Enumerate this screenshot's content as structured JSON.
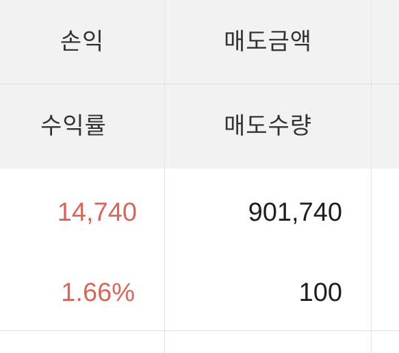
{
  "table": {
    "headers": {
      "col1_top": "손익",
      "col1_bottom": "수익률",
      "col2_top": "매도금액",
      "col2_bottom": "매도수량"
    },
    "row": {
      "profit": "14,740",
      "return_rate": "1.66%",
      "sell_amount": "901,740",
      "sell_quantity": "100"
    },
    "colors": {
      "positive": "#d9655a",
      "neutral": "#1e1e1e",
      "header_bg": "#f2f2f3"
    }
  }
}
